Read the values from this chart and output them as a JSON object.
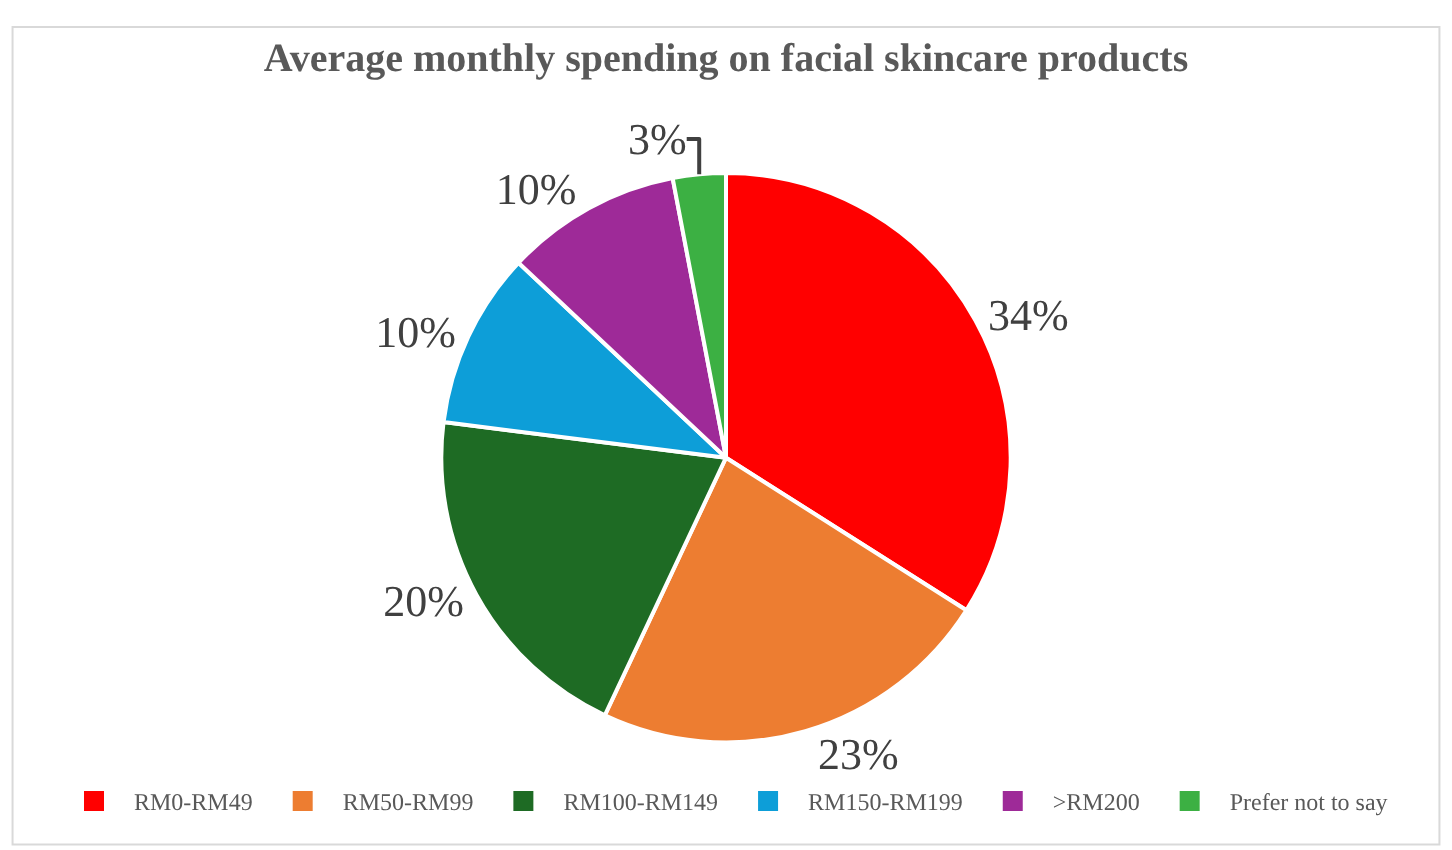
{
  "chart_data": {
    "type": "pie",
    "title": "Average monthly spending on facial skincare products",
    "categories": [
      "RM0-RM49",
      "RM50-RM99",
      "RM100-RM149",
      "RM150-RM199",
      ">RM200",
      "Prefer not to say"
    ],
    "values": [
      34,
      23,
      20,
      10,
      10,
      3
    ],
    "value_labels": [
      "34%",
      "23%",
      "20%",
      "10%",
      "10%",
      "3%"
    ],
    "colors": [
      "#ff0000",
      "#ed7d31",
      "#1e6b24",
      "#0d9ed8",
      "#9e2a98",
      "#3cb043"
    ],
    "legend": "bottom"
  }
}
